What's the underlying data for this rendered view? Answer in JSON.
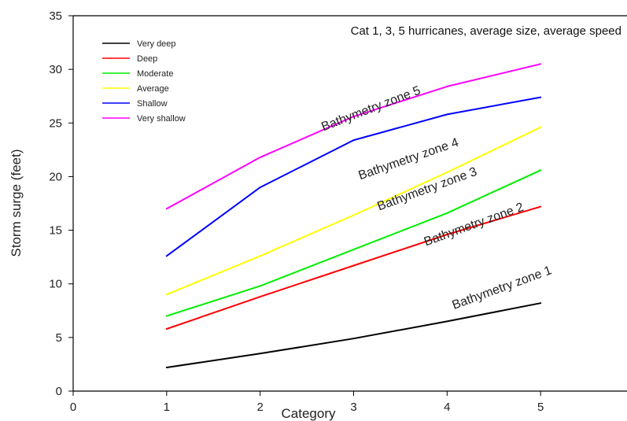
{
  "chart_data": {
    "type": "line",
    "title": "Cat 1, 3, 5 hurricanes, average size, average speed",
    "xlabel": "Category",
    "ylabel": "Storm surge (feet)",
    "xlim": [
      0,
      6
    ],
    "ylim": [
      0,
      35
    ],
    "x_ticks": [
      0,
      1,
      2,
      3,
      4,
      5
    ],
    "y_ticks": [
      0,
      5,
      10,
      15,
      20,
      25,
      30,
      35
    ],
    "grid": false,
    "legend_position": "top-left",
    "x": [
      1,
      2,
      3,
      4,
      5
    ],
    "series": [
      {
        "name": "Very deep",
        "color": "#000000",
        "values": [
          2.2,
          3.5,
          4.9,
          6.5,
          8.2
        ]
      },
      {
        "name": "Deep",
        "color": "#ff0000",
        "values": [
          5.8,
          8.8,
          11.7,
          14.6,
          17.2
        ]
      },
      {
        "name": "Moderate",
        "color": "#00ee00",
        "values": [
          7.0,
          9.8,
          13.2,
          16.6,
          20.6
        ]
      },
      {
        "name": "Average",
        "color": "#ffff00",
        "values": [
          9.0,
          12.6,
          16.4,
          20.4,
          24.6
        ]
      },
      {
        "name": "Shallow",
        "color": "#0000ff",
        "values": [
          12.6,
          19.0,
          23.4,
          25.8,
          27.4
        ]
      },
      {
        "name": "Very shallow",
        "color": "#ff00ff",
        "values": [
          17.0,
          21.8,
          25.6,
          28.4,
          30.5
        ]
      }
    ],
    "annotations": [
      {
        "text": "Bathymetry zone 1",
        "x": 4.6,
        "y": 9.3,
        "angle": -20
      },
      {
        "text": "Bathymetry zone 2",
        "x": 4.3,
        "y": 15.2,
        "angle": -20
      },
      {
        "text": "Bathymetry zone 3",
        "x": 3.8,
        "y": 18.5,
        "angle": -20
      },
      {
        "text": "Bathymetry zone 4",
        "x": 3.6,
        "y": 21.3,
        "angle": -19
      },
      {
        "text": "Bathymetry zone 5",
        "x": 3.2,
        "y": 26.0,
        "angle": -21
      }
    ]
  }
}
